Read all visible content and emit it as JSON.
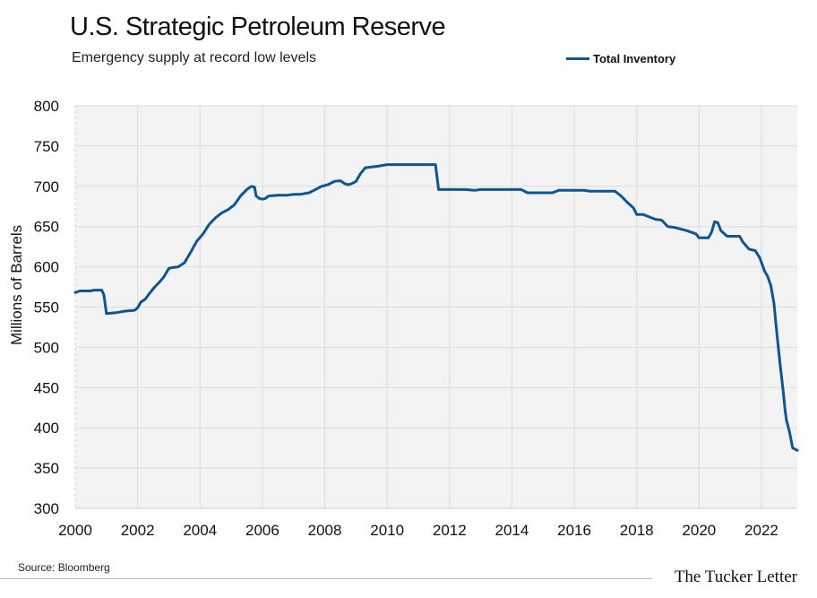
{
  "header": {
    "title": "U.S. Strategic Petroleum Reserve",
    "subtitle": "Emergency supply at record low levels"
  },
  "footer": {
    "source": "Source: Bloomberg",
    "brand": "The Tucker Letter"
  },
  "colors": {
    "series": "#0f5592",
    "plot_background": "#f3f3f3",
    "grid": "#dcdcdc"
  },
  "chart_data": {
    "type": "line",
    "title": "U.S. Strategic Petroleum Reserve",
    "subtitle": "Emergency supply at record low levels",
    "xlabel": "",
    "ylabel": "Millions of Barrels",
    "xlim": [
      2000,
      2023.15
    ],
    "ylim": [
      300,
      800
    ],
    "xticks": [
      2000,
      2002,
      2004,
      2006,
      2008,
      2010,
      2012,
      2014,
      2016,
      2018,
      2020,
      2022
    ],
    "yticks": [
      300,
      350,
      400,
      450,
      500,
      550,
      600,
      650,
      700,
      750,
      800
    ],
    "grid": true,
    "legend_position": "top-right",
    "series": [
      {
        "name": "Total Inventory",
        "x": [
          2000.0,
          2000.15,
          2000.5,
          2000.6,
          2000.85,
          2000.92,
          2001.0,
          2001.3,
          2001.6,
          2001.9,
          2002.0,
          2002.1,
          2002.25,
          2002.4,
          2002.55,
          2002.7,
          2002.85,
          2003.0,
          2003.1,
          2003.3,
          2003.5,
          2003.7,
          2003.9,
          2004.1,
          2004.3,
          2004.5,
          2004.7,
          2004.9,
          2005.1,
          2005.3,
          2005.5,
          2005.65,
          2005.75,
          2005.8,
          2005.9,
          2006.0,
          2006.1,
          2006.2,
          2006.5,
          2006.8,
          2007.0,
          2007.2,
          2007.5,
          2007.7,
          2007.9,
          2008.1,
          2008.3,
          2008.5,
          2008.65,
          2008.75,
          2008.85,
          2009.0,
          2009.15,
          2009.3,
          2009.5,
          2009.7,
          2010.0,
          2010.5,
          2011.0,
          2011.4,
          2011.55,
          2011.65,
          2012.0,
          2012.5,
          2012.8,
          2013.0,
          2013.5,
          2014.0,
          2014.3,
          2014.5,
          2015.0,
          2015.3,
          2015.5,
          2015.8,
          2016.0,
          2016.3,
          2016.5,
          2017.0,
          2017.3,
          2017.5,
          2017.7,
          2017.9,
          2018.0,
          2018.2,
          2018.4,
          2018.6,
          2018.8,
          2019.0,
          2019.2,
          2019.6,
          2019.9,
          2020.0,
          2020.3,
          2020.4,
          2020.5,
          2020.6,
          2020.7,
          2020.9,
          2021.3,
          2021.4,
          2021.6,
          2021.8,
          2021.95,
          2022.1,
          2022.2,
          2022.3,
          2022.4,
          2022.5,
          2022.6,
          2022.7,
          2022.75,
          2022.8,
          2022.9,
          2023.0,
          2023.15
        ],
        "values": [
          568,
          570,
          570,
          571,
          571,
          565,
          542,
          543,
          545,
          546,
          549,
          556,
          560,
          568,
          575,
          581,
          588,
          598,
          599,
          600,
          605,
          618,
          632,
          641,
          653,
          661,
          667,
          671,
          677,
          688,
          696,
          700,
          699,
          688,
          685,
          684,
          685,
          688,
          689,
          689,
          690,
          690,
          692,
          696,
          700,
          702,
          706,
          707,
          703,
          702,
          703,
          706,
          716,
          723,
          724,
          725,
          727,
          727,
          727,
          727,
          727,
          696,
          696,
          696,
          695,
          696,
          696,
          696,
          696,
          692,
          692,
          692,
          695,
          695,
          695,
          695,
          694,
          694,
          694,
          688,
          680,
          673,
          665,
          665,
          662,
          659,
          658,
          650,
          649,
          645,
          641,
          636,
          636,
          643,
          656,
          655,
          645,
          638,
          638,
          631,
          622,
          620,
          611,
          595,
          588,
          577,
          555,
          515,
          478,
          445,
          425,
          410,
          395,
          375,
          372
        ]
      }
    ]
  }
}
